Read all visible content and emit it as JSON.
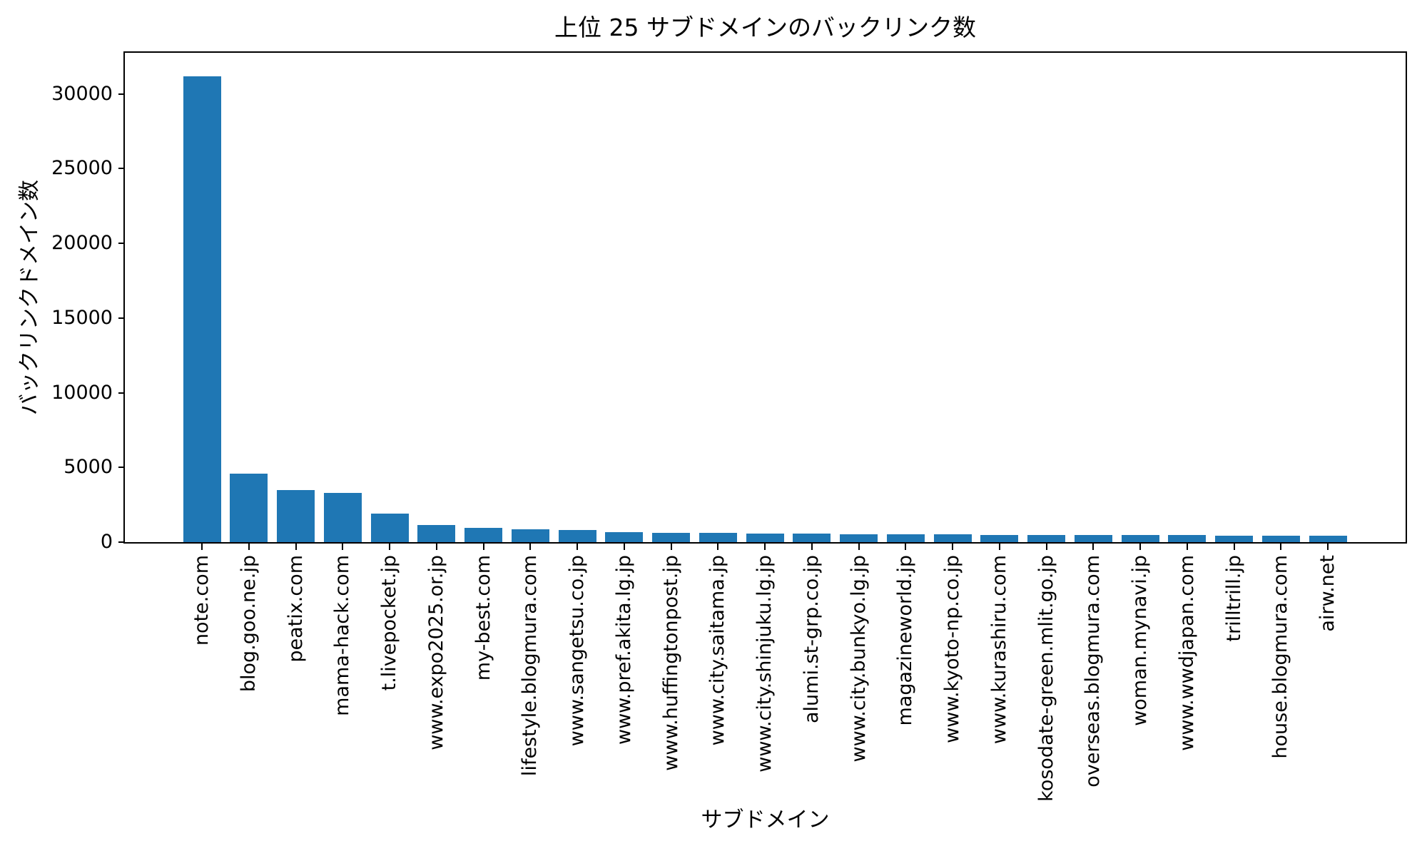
{
  "chart_data": {
    "type": "bar",
    "title": "上位 25 サブドメインのバックリンク数",
    "xlabel": "サブドメイン",
    "ylabel": "バックリンクドメイン数",
    "categories": [
      "note.com",
      "blog.goo.ne.jp",
      "peatix.com",
      "mama-hack.com",
      "t.livepocket.jp",
      "www.expo2025.or.jp",
      "my-best.com",
      "lifestyle.blogmura.com",
      "www.sangetsu.co.jp",
      "www.pref.akita.lg.jp",
      "www.huffingtonpost.jp",
      "www.city.saitama.jp",
      "www.city.shinjuku.lg.jp",
      "alumi.st-grp.co.jp",
      "www.city.bunkyo.lg.jp",
      "magazineworld.jp",
      "www.kyoto-np.co.jp",
      "www.kurashiru.com",
      "kosodate-green.mlit.go.jp",
      "overseas.blogmura.com",
      "woman.mynavi.jp",
      "www.wwdjapan.com",
      "trilltrill.jp",
      "house.blogmura.com",
      "airw.net"
    ],
    "values": [
      31200,
      4600,
      3500,
      3300,
      1900,
      1150,
      950,
      880,
      830,
      690,
      640,
      615,
      590,
      565,
      545,
      525,
      510,
      500,
      490,
      480,
      465,
      455,
      445,
      435,
      425
    ],
    "yticks": [
      0,
      5000,
      10000,
      15000,
      20000,
      25000,
      30000
    ],
    "ylim": [
      0,
      32760
    ],
    "grid": false,
    "legend": "none",
    "bar_color": "#1f77b4",
    "axis_color": "#000000",
    "background_color": "#ffffff"
  }
}
